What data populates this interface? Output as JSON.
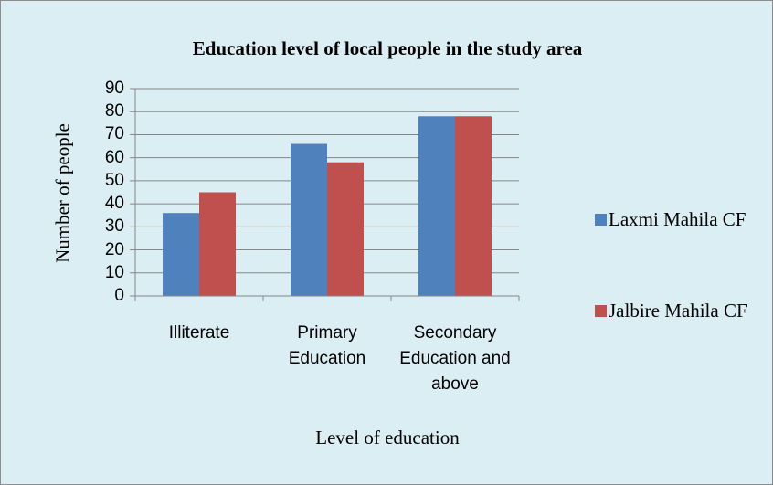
{
  "chart_data": {
    "type": "bar",
    "title": "Education level of local people in the study area",
    "x_label": "Level of education",
    "y_label": "Number of people",
    "categories": [
      "Illiterate",
      "Primary Education",
      "Secondary Education and above"
    ],
    "series": [
      {
        "name": "Laxmi Mahila CF",
        "color": "#4f81bd",
        "values": [
          36,
          66,
          78
        ]
      },
      {
        "name": "Jalbire Mahila CF",
        "color": "#c0504d",
        "values": [
          45,
          58,
          78
        ]
      }
    ],
    "ylim": [
      0,
      90
    ],
    "yticks": [
      0,
      10,
      20,
      30,
      40,
      50,
      60,
      70,
      80,
      90
    ],
    "grid": true,
    "legend": "right"
  }
}
